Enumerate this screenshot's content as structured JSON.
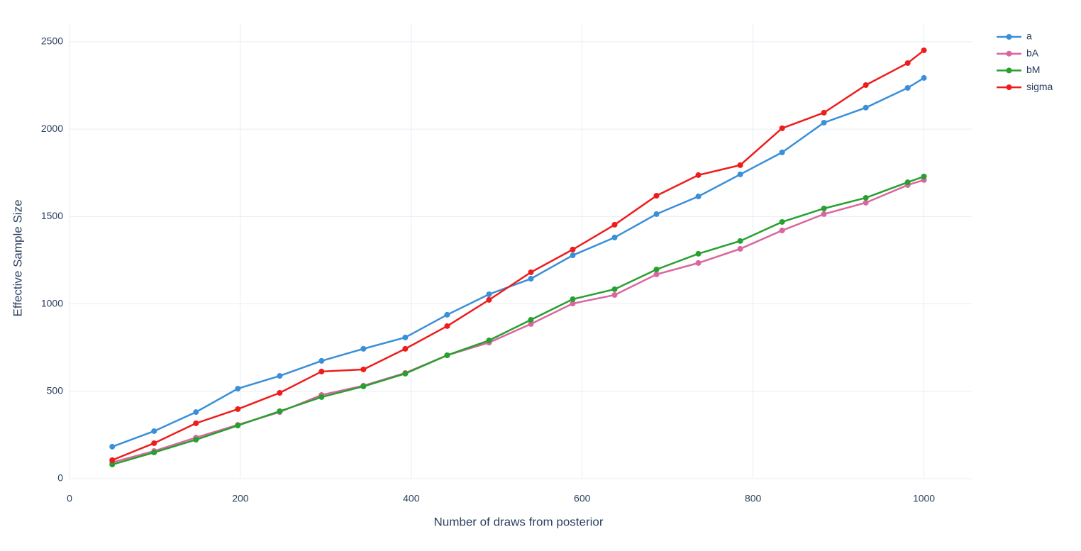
{
  "chart_data": {
    "type": "line",
    "x_label": "Number of draws from posterior",
    "y_label": "Effective Sample Size",
    "x": [
      50,
      99,
      148,
      197,
      246,
      295,
      344,
      393,
      442,
      491,
      540,
      589,
      638,
      687,
      736,
      785,
      834,
      883,
      932,
      981,
      1000
    ],
    "series": [
      {
        "name": "a",
        "color": "#3a8fd9",
        "values": [
          183,
          272,
          381,
          515,
          588,
          674,
          743,
          808,
          938,
          1055,
          1144,
          1278,
          1380,
          1514,
          1615,
          1741,
          1867,
          2037,
          2123,
          2236,
          2293
        ]
      },
      {
        "name": "bA",
        "color": "#d9669e",
        "values": [
          93,
          158,
          235,
          308,
          381,
          479,
          532,
          605,
          706,
          779,
          885,
          1002,
          1051,
          1169,
          1234,
          1315,
          1420,
          1514,
          1579,
          1680,
          1709
        ]
      },
      {
        "name": "bM",
        "color": "#27a02f",
        "values": [
          81,
          150,
          223,
          304,
          386,
          467,
          528,
          601,
          706,
          791,
          909,
          1027,
          1084,
          1197,
          1287,
          1360,
          1469,
          1546,
          1607,
          1696,
          1729
        ]
      },
      {
        "name": "sigma",
        "color": "#ef1c1c",
        "values": [
          106,
          203,
          317,
          398,
          491,
          613,
          625,
          743,
          873,
          1023,
          1181,
          1311,
          1453,
          1619,
          1737,
          1794,
          2005,
          2094,
          2252,
          2378,
          2451
        ]
      }
    ],
    "xlim": [
      0,
      1056
    ],
    "xticks": [
      0,
      200,
      400,
      600,
      800,
      1000
    ],
    "ylim": [
      0,
      2605
    ],
    "yticks": [
      0,
      500,
      1000,
      1500,
      2000,
      2500
    ],
    "grid": true,
    "legend": "top-right"
  }
}
